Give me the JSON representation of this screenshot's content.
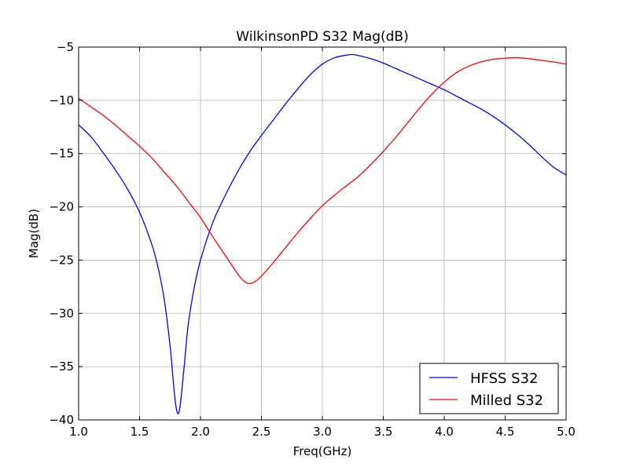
{
  "chart_data": {
    "type": "line",
    "title": "WilkinsonPD S32 Mag(dB)",
    "xlabel": "Freq(GHz)",
    "ylabel": "Mag(dB)",
    "xlim": [
      1.0,
      5.0
    ],
    "ylim": [
      -40,
      -5
    ],
    "x_ticks": [
      1.0,
      1.5,
      2.0,
      2.5,
      3.0,
      3.5,
      4.0,
      4.5,
      5.0
    ],
    "x_tick_labels": [
      "1.0",
      "1.5",
      "2.0",
      "2.5",
      "3.0",
      "3.5",
      "4.0",
      "4.5",
      "5.0"
    ],
    "y_ticks": [
      -5,
      -10,
      -15,
      -20,
      -25,
      -30,
      -35,
      -40
    ],
    "y_tick_labels": [
      "−5",
      "−10",
      "−15",
      "−20",
      "−25",
      "−30",
      "−35",
      "−40"
    ],
    "grid": true,
    "legend_position": "bottom-right",
    "series": [
      {
        "name": "HFSS S32",
        "color": "#0000ff",
        "x": [
          1.0,
          1.1,
          1.2,
          1.3,
          1.4,
          1.5,
          1.6,
          1.65,
          1.7,
          1.75,
          1.78,
          1.8,
          1.82,
          1.84,
          1.87,
          1.9,
          1.95,
          2.0,
          2.1,
          2.2,
          2.3,
          2.4,
          2.5,
          2.6,
          2.7,
          2.8,
          2.9,
          3.0,
          3.1,
          3.2,
          3.25,
          3.3,
          3.4,
          3.5,
          3.6,
          3.7,
          3.8,
          3.9,
          4.0,
          4.1,
          4.2,
          4.3,
          4.4,
          4.5,
          4.6,
          4.7,
          4.8,
          4.9,
          5.0
        ],
        "values": [
          -12.3,
          -13.4,
          -14.9,
          -16.5,
          -18.3,
          -20.5,
          -23.5,
          -25.6,
          -28.5,
          -33.0,
          -36.8,
          -38.8,
          -39.4,
          -38.0,
          -34.5,
          -31.0,
          -27.5,
          -25.0,
          -21.5,
          -19.0,
          -16.8,
          -14.9,
          -13.3,
          -11.8,
          -10.3,
          -8.9,
          -7.6,
          -6.6,
          -6.0,
          -5.75,
          -5.7,
          -5.8,
          -6.1,
          -6.5,
          -7.0,
          -7.5,
          -8.0,
          -8.5,
          -9.0,
          -9.6,
          -10.2,
          -10.8,
          -11.5,
          -12.3,
          -13.2,
          -14.2,
          -15.3,
          -16.3,
          -17.0
        ]
      },
      {
        "name": "Milled S32",
        "color": "#ff0000",
        "x": [
          1.0,
          1.1,
          1.2,
          1.3,
          1.4,
          1.5,
          1.6,
          1.7,
          1.8,
          1.9,
          2.0,
          2.1,
          2.2,
          2.3,
          2.35,
          2.4,
          2.45,
          2.5,
          2.6,
          2.7,
          2.8,
          2.9,
          3.0,
          3.1,
          3.2,
          3.3,
          3.4,
          3.5,
          3.6,
          3.7,
          3.8,
          3.9,
          4.0,
          4.1,
          4.2,
          4.3,
          4.4,
          4.5,
          4.6,
          4.7,
          4.8,
          4.9,
          5.0
        ],
        "values": [
          -9.8,
          -10.6,
          -11.4,
          -12.3,
          -13.3,
          -14.3,
          -15.4,
          -16.7,
          -18.0,
          -19.5,
          -21.0,
          -22.8,
          -24.5,
          -26.2,
          -26.9,
          -27.2,
          -27.0,
          -26.5,
          -25.2,
          -23.8,
          -22.4,
          -21.1,
          -19.9,
          -18.9,
          -18.0,
          -17.1,
          -16.0,
          -14.8,
          -13.5,
          -12.1,
          -10.7,
          -9.4,
          -8.3,
          -7.4,
          -6.8,
          -6.4,
          -6.15,
          -6.05,
          -6.0,
          -6.1,
          -6.25,
          -6.4,
          -6.6
        ]
      }
    ]
  }
}
